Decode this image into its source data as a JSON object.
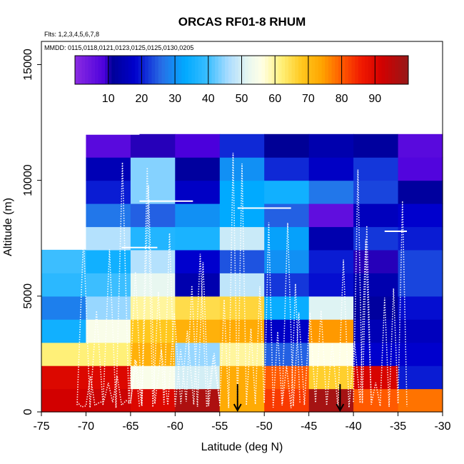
{
  "chart_data": {
    "type": "heatmap",
    "title": "ORCAS RF01-8 RHUM",
    "subtitle_flights": "Flts: 1,2,3,4,5,6,7,8",
    "subtitle_dates": "MMDD: 0115,0118,0121,0123,0125,0125,0130,0205",
    "xlabel": "Latitude (deg N)",
    "ylabel": "Altitude (m)",
    "xlim": [
      -75,
      -30
    ],
    "ylim": [
      0,
      16000
    ],
    "x_ticks": [
      -75,
      -70,
      -65,
      -60,
      -55,
      -50,
      -45,
      -40,
      -35,
      -30
    ],
    "x_tick_labels": [
      "-75",
      "-70",
      "-65",
      "-60",
      "-55",
      "-50",
      "-45",
      "-40",
      "-35",
      "-30"
    ],
    "y_ticks": [
      0,
      5000,
      10000,
      15000
    ],
    "y_tick_labels": [
      "0",
      "5000",
      "10000",
      "15000"
    ],
    "colorbar": {
      "range": [
        0,
        100
      ],
      "ticks": [
        10,
        20,
        30,
        40,
        50,
        60,
        70,
        80,
        90
      ],
      "tick_labels": [
        "10",
        "20",
        "30",
        "40",
        "50",
        "60",
        "70",
        "80",
        "90"
      ]
    },
    "cell_size": {
      "lat": 5,
      "alt": 1000
    },
    "lat_bins": [
      -75,
      -70,
      -65,
      -60,
      -55,
      -50,
      -45,
      -40,
      -35
    ],
    "alt_bins": [
      0,
      1000,
      2000,
      3000,
      4000,
      5000,
      6000,
      7000,
      8000,
      9000,
      10000,
      11000
    ],
    "rhum": [
      [
        92,
        90,
        62,
        35,
        28,
        38,
        40,
        null,
        null,
        null,
        null,
        null
      ],
      [
        93,
        90,
        62,
        55,
        45,
        40,
        35,
        47,
        27,
        20,
        15,
        7
      ],
      [
        90,
        55,
        72,
        68,
        60,
        52,
        47,
        37,
        25,
        44,
        44,
        10
      ],
      [
        97,
        50,
        45,
        72,
        65,
        14,
        18,
        36,
        30,
        17,
        12,
        9
      ],
      [
        73,
        73,
        60,
        73,
        66,
        48,
        24,
        49,
        33,
        33,
        30,
        21
      ],
      [
        83,
        80,
        25,
        17,
        34,
        22,
        30,
        32,
        25,
        35,
        21,
        11
      ],
      [
        98,
        67,
        56,
        75,
        51,
        19,
        20,
        14,
        6,
        27,
        17,
        14
      ],
      [
        80,
        91,
        18,
        15,
        12,
        14,
        10,
        22,
        16,
        23,
        22,
        12
      ],
      [
        78,
        20,
        18,
        16,
        19,
        23,
        23,
        20,
        18,
        12,
        8,
        7
      ]
    ],
    "annotations": [
      {
        "type": "arrow-down",
        "lat": -53,
        "alt": 600
      },
      {
        "type": "arrow-down",
        "lat": -41.5,
        "alt": 600
      }
    ]
  },
  "colors": {
    "background": "#ffffff",
    "track": "#ffffff",
    "axis": "#000000"
  }
}
